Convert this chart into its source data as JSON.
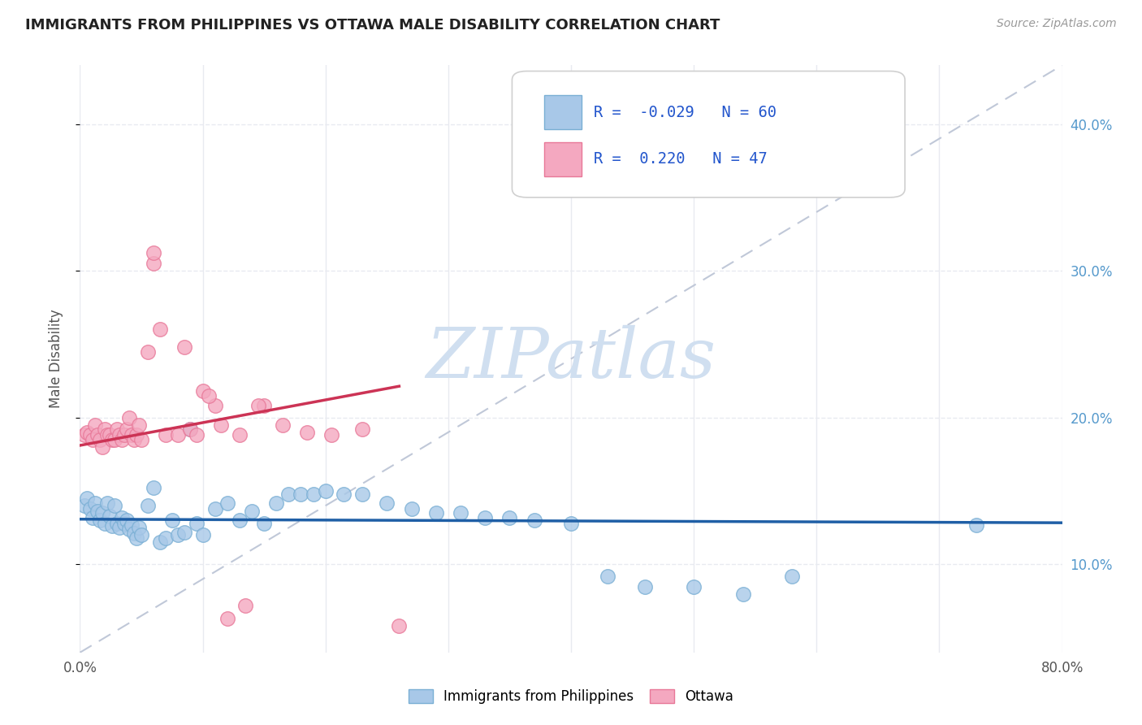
{
  "title": "IMMIGRANTS FROM PHILIPPINES VS OTTAWA MALE DISABILITY CORRELATION CHART",
  "source_text": "Source: ZipAtlas.com",
  "ylabel": "Male Disability",
  "xlim": [
    0.0,
    0.8
  ],
  "ylim": [
    0.04,
    0.44
  ],
  "yticks": [
    0.1,
    0.2,
    0.3,
    0.4
  ],
  "ytick_labels": [
    "10.0%",
    "20.0%",
    "30.0%",
    "40.0%"
  ],
  "xticks": [
    0.0,
    0.1,
    0.2,
    0.3,
    0.4,
    0.5,
    0.6,
    0.7,
    0.8
  ],
  "xtick_labels": [
    "0.0%",
    "",
    "",
    "",
    "",
    "",
    "",
    "",
    "80.0%"
  ],
  "blue_R": -0.029,
  "blue_N": 60,
  "pink_R": 0.22,
  "pink_N": 47,
  "blue_color": "#a8c8e8",
  "blue_edge": "#7aafd4",
  "pink_color": "#f4a8c0",
  "pink_edge": "#e87898",
  "blue_line_color": "#1f5fa6",
  "pink_line_color": "#cc3355",
  "diagonal_color": "#c0c8d8",
  "watermark_text": "ZIPatlas",
  "watermark_color": "#d0dff0",
  "legend_R_color": "#2255cc",
  "background_color": "#ffffff",
  "grid_color": "#e8eaf0",
  "blue_x": [
    0.004,
    0.006,
    0.008,
    0.01,
    0.012,
    0.014,
    0.016,
    0.018,
    0.02,
    0.022,
    0.024,
    0.026,
    0.028,
    0.03,
    0.032,
    0.034,
    0.036,
    0.038,
    0.04,
    0.042,
    0.044,
    0.046,
    0.048,
    0.05,
    0.055,
    0.06,
    0.065,
    0.07,
    0.075,
    0.08,
    0.085,
    0.09,
    0.095,
    0.1,
    0.11,
    0.12,
    0.13,
    0.14,
    0.15,
    0.16,
    0.17,
    0.18,
    0.19,
    0.2,
    0.215,
    0.23,
    0.25,
    0.27,
    0.29,
    0.31,
    0.33,
    0.35,
    0.37,
    0.4,
    0.43,
    0.46,
    0.5,
    0.54,
    0.58,
    0.73
  ],
  "blue_y": [
    0.14,
    0.145,
    0.138,
    0.132,
    0.142,
    0.136,
    0.13,
    0.135,
    0.128,
    0.142,
    0.133,
    0.126,
    0.14,
    0.128,
    0.125,
    0.132,
    0.128,
    0.13,
    0.124,
    0.127,
    0.121,
    0.118,
    0.125,
    0.12,
    0.14,
    0.152,
    0.115,
    0.118,
    0.13,
    0.12,
    0.122,
    0.192,
    0.128,
    0.12,
    0.138,
    0.142,
    0.13,
    0.136,
    0.128,
    0.142,
    0.148,
    0.148,
    0.148,
    0.15,
    0.148,
    0.148,
    0.142,
    0.138,
    0.135,
    0.135,
    0.132,
    0.132,
    0.13,
    0.128,
    0.092,
    0.085,
    0.085,
    0.08,
    0.092,
    0.127
  ],
  "pink_x": [
    0.004,
    0.006,
    0.008,
    0.01,
    0.012,
    0.014,
    0.016,
    0.018,
    0.02,
    0.022,
    0.024,
    0.026,
    0.028,
    0.03,
    0.032,
    0.034,
    0.036,
    0.038,
    0.04,
    0.042,
    0.044,
    0.046,
    0.048,
    0.05,
    0.055,
    0.06,
    0.065,
    0.07,
    0.08,
    0.09,
    0.1,
    0.11,
    0.12,
    0.135,
    0.15,
    0.165,
    0.185,
    0.205,
    0.23,
    0.26,
    0.06,
    0.085,
    0.095,
    0.105,
    0.115,
    0.13,
    0.145
  ],
  "pink_y": [
    0.188,
    0.19,
    0.188,
    0.185,
    0.195,
    0.188,
    0.185,
    0.18,
    0.192,
    0.188,
    0.188,
    0.185,
    0.185,
    0.192,
    0.188,
    0.185,
    0.188,
    0.192,
    0.2,
    0.188,
    0.185,
    0.188,
    0.195,
    0.185,
    0.245,
    0.305,
    0.26,
    0.188,
    0.188,
    0.192,
    0.218,
    0.208,
    0.063,
    0.072,
    0.208,
    0.195,
    0.19,
    0.188,
    0.192,
    0.058,
    0.312,
    0.248,
    0.188,
    0.215,
    0.195,
    0.188,
    0.208
  ]
}
